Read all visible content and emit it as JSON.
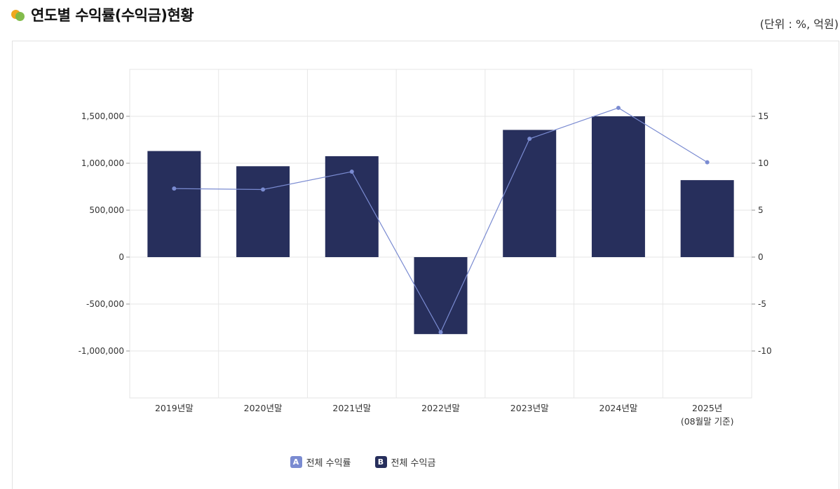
{
  "header": {
    "title": "연도별 수익률(수익금)현황",
    "unit": "(단위 : %, 억원)"
  },
  "colors": {
    "bar": "#272f5c",
    "line": "#7a8bd1",
    "grid": "#e6e6e6",
    "icon_orange": "#f0a81e",
    "icon_green": "#7cb842"
  },
  "legend": [
    {
      "badge": "A",
      "label": "전체 수익률",
      "color": "#7a8bd1"
    },
    {
      "badge": "B",
      "label": "전체 수익금",
      "color": "#272f5c"
    }
  ],
  "chart_data": {
    "type": "bar",
    "categories": [
      "2019년말",
      "2020년말",
      "2021년말",
      "2022년말",
      "2023년말",
      "2024년말",
      "2025년\n(08월말 기준)"
    ],
    "series": [
      {
        "axis": "left",
        "kind": "bar",
        "values": [
          1130000,
          968000,
          1075000,
          -820000,
          1355000,
          1500000,
          820000
        ]
      },
      {
        "axis": "right",
        "kind": "line",
        "values": [
          7.3,
          7.2,
          9.1,
          -8.0,
          12.6,
          15.9,
          10.1
        ]
      }
    ],
    "y_left": {
      "min": -1500000,
      "max": 2000000,
      "ticks": [
        1500000,
        1000000,
        500000,
        0,
        -500000,
        -1000000
      ],
      "tick_labels": [
        "1,500,000",
        "1,000,000",
        "500,000",
        "0",
        "-500,000",
        "-1,000,000"
      ]
    },
    "y_right": {
      "min": -15,
      "max": 20,
      "ticks": [
        15,
        10,
        5,
        0,
        -5,
        -10
      ],
      "tick_labels": [
        "15",
        "10",
        "5",
        "0",
        "-5",
        "-10"
      ]
    },
    "grid": true,
    "legend_position": "bottom"
  }
}
